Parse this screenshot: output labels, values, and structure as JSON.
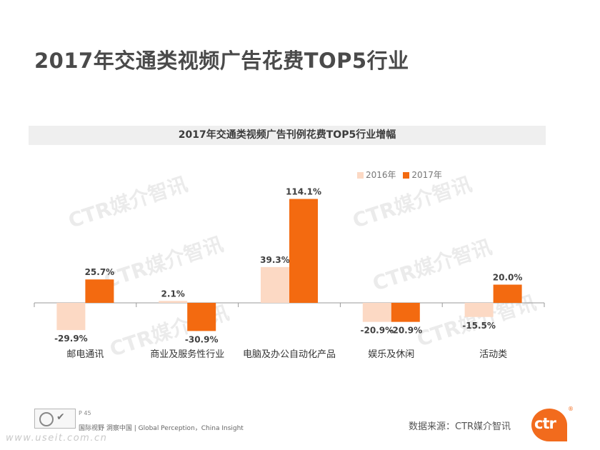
{
  "page": {
    "title": "2017年交通类视频广告花费TOP5行业",
    "page_number": "P 45",
    "tagline": "国际视野  洞察中国 |  Global Perception，China Insight",
    "source": "数据来源：CTR媒介智讯",
    "logo_text": "ctr",
    "logo_mark": "®",
    "watermark_text": "CTR媒介智讯",
    "url_watermark": "www.useit.com.cn"
  },
  "colors": {
    "series_2016": "#fcd9c4",
    "series_2017": "#f36a10",
    "axis": "#9a9a9a",
    "label": "#404040"
  },
  "chart_data": {
    "type": "bar",
    "title": "2017年交通类视频广告刊例花费TOP5行业增幅",
    "categories": [
      "邮电通讯",
      "商业及服务性行业",
      "电脑及办公自动化产品",
      "娱乐及休闲",
      "活动类"
    ],
    "series": [
      {
        "name": "2016年",
        "values": [
          -29.9,
          2.1,
          39.3,
          -20.9,
          -15.5
        ]
      },
      {
        "name": "2017年",
        "values": [
          25.7,
          -30.9,
          114.1,
          -20.9,
          20.0
        ]
      }
    ],
    "unit": "%",
    "legend_position": "top-right",
    "grid": false
  }
}
